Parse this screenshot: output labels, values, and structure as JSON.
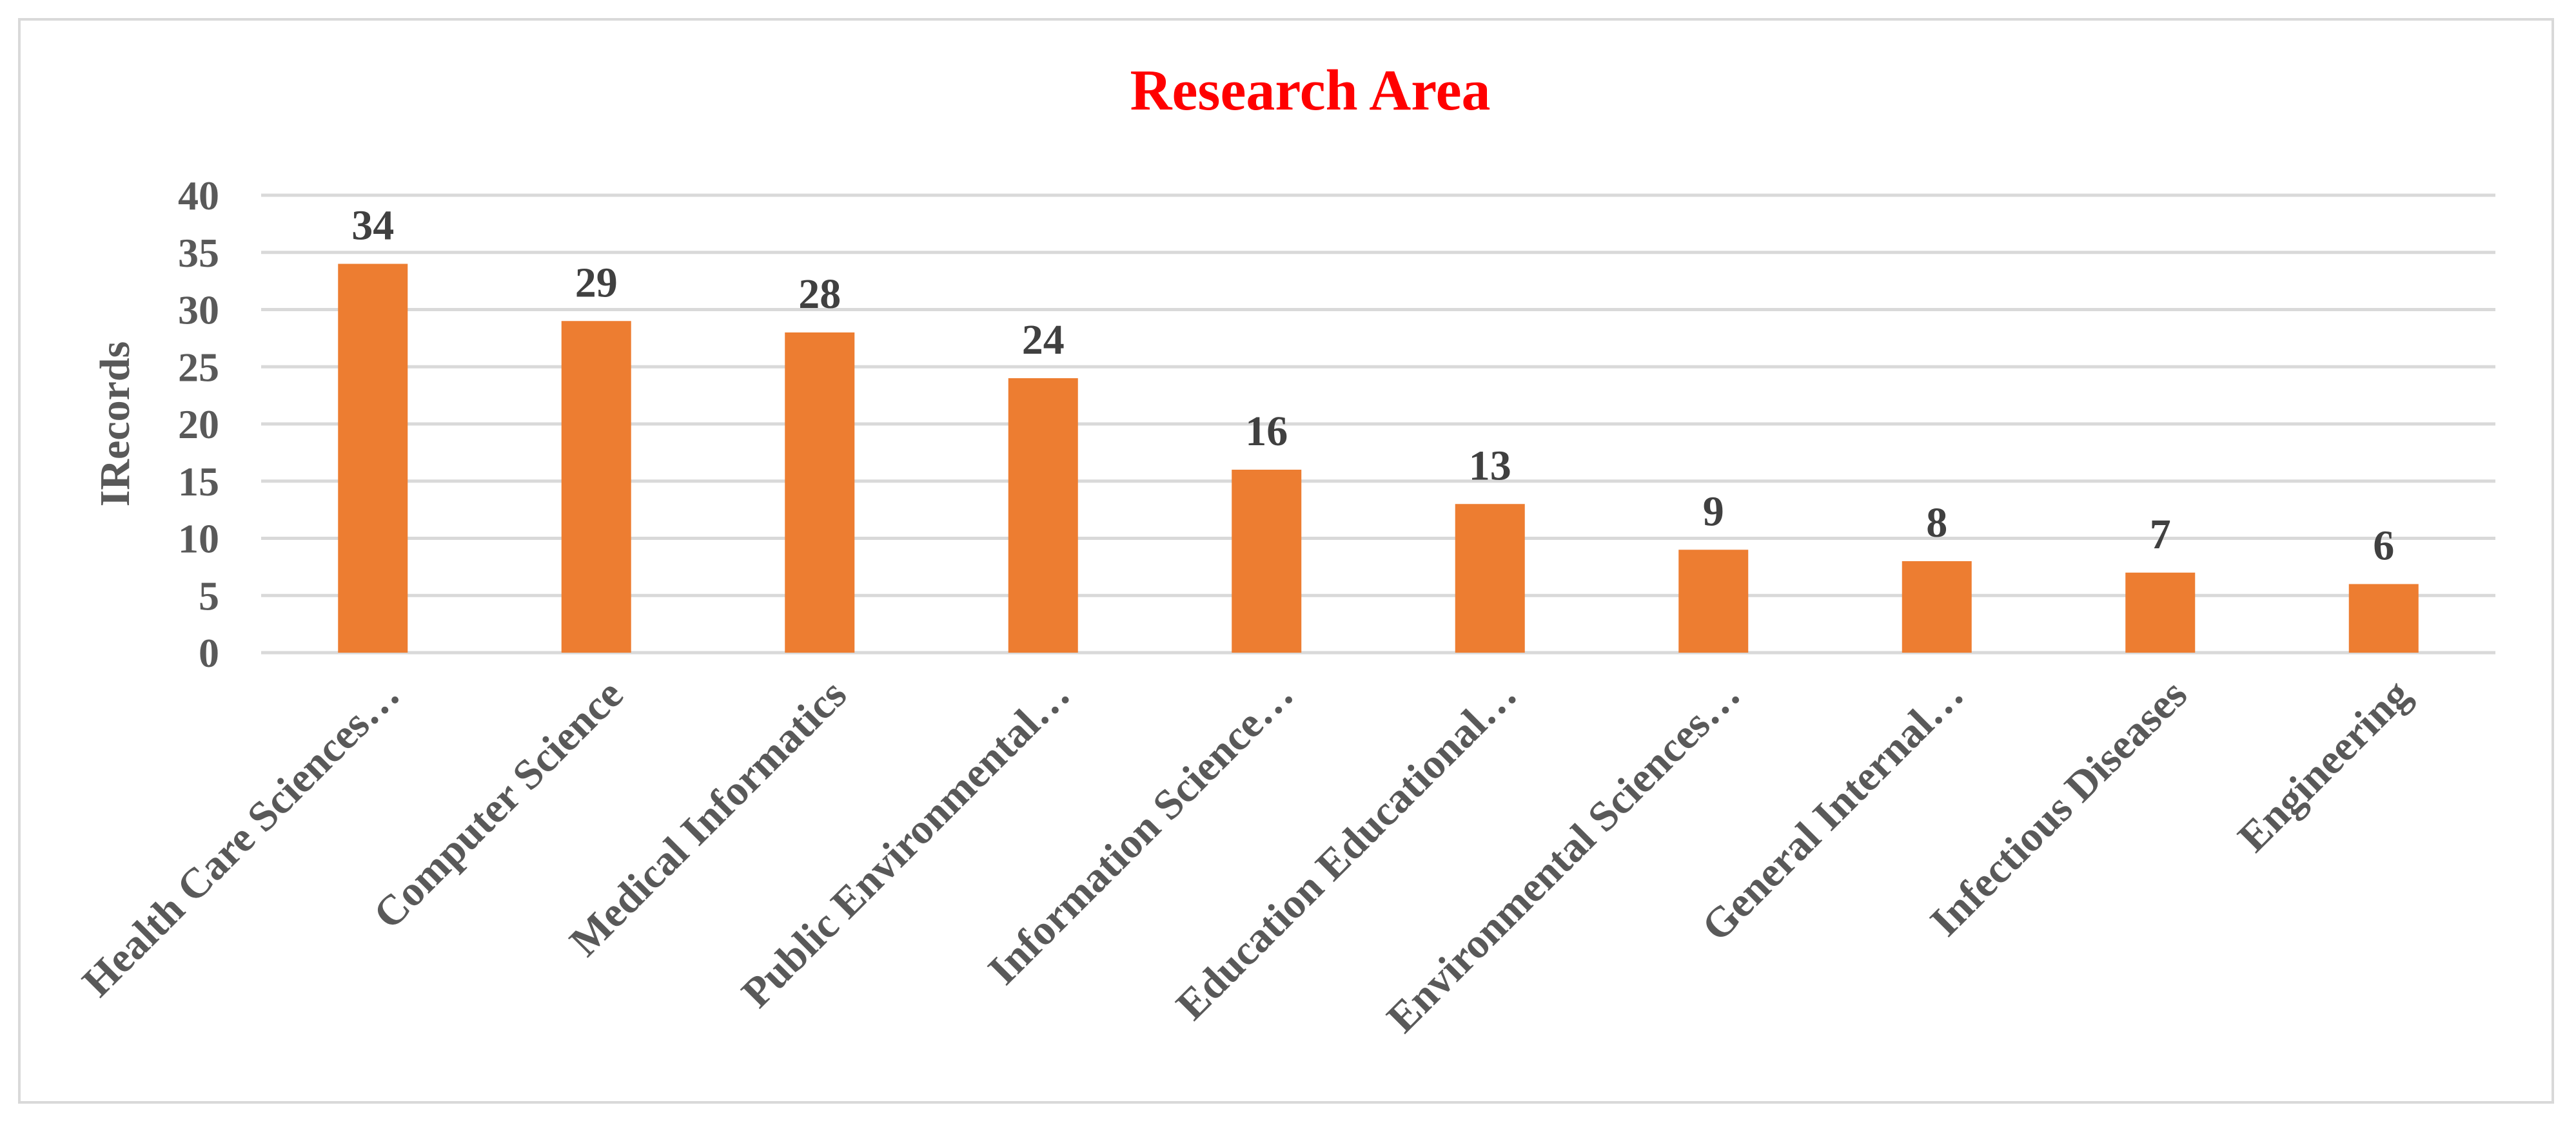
{
  "chart_data": {
    "type": "bar",
    "title": "Research Area",
    "xlabel": "",
    "ylabel": "IRecords",
    "categories": [
      "Health Care Sciences…",
      "Computer Science",
      "Medical Informatics",
      "Public Environmental…",
      "Information Science…",
      "Education Educational…",
      "Environmental Sciences…",
      "General Internal…",
      "Infectious Diseases",
      "Engineering"
    ],
    "values": [
      34,
      29,
      28,
      24,
      16,
      13,
      9,
      8,
      7,
      6
    ],
    "ylim": [
      0,
      40
    ],
    "yticks": [
      0,
      5,
      10,
      15,
      20,
      25,
      30,
      35,
      40
    ],
    "grid": true,
    "legend": "none",
    "colors": {
      "bar": "#ED7D31",
      "title": "#FF0000",
      "gridline": "#D9D9D9",
      "axis_text": "#595959",
      "data_label": "#404040"
    }
  }
}
